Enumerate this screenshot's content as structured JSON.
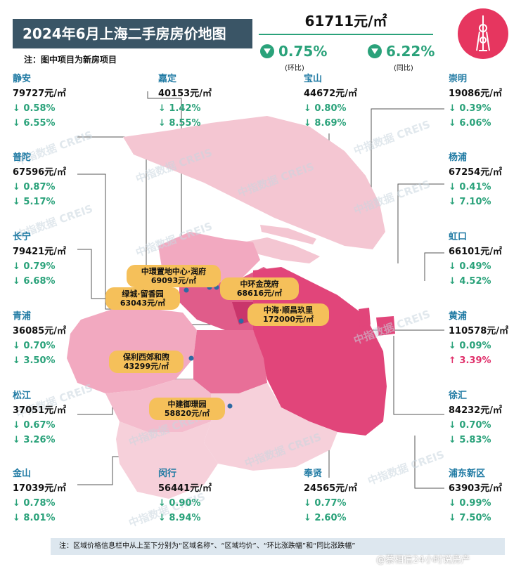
{
  "title": "2024年6月上海二手房房价地图",
  "note": "注：图中项目为新房项目",
  "overall": {
    "avg_price": "61711元/㎡",
    "mom": "0.75%",
    "mom_label": "(环比)",
    "yoy": "6.22%",
    "yoy_label": "(同比)"
  },
  "colors": {
    "accent": "#2aa27a",
    "title_bg": "#3a5566",
    "label": "#f5c05a",
    "up": "#e0306b",
    "name": "#1f7aa3"
  },
  "districts": [
    {
      "name": "静安",
      "price": "79727元/㎡",
      "mom": "↓ 0.58%",
      "yoy": "↓ 6.55%"
    },
    {
      "name": "嘉定",
      "price": "40153元/㎡",
      "mom": "↓ 1.42%",
      "yoy": "↓ 8.55%"
    },
    {
      "name": "宝山",
      "price": "44672元/㎡",
      "mom": "↓ 0.80%",
      "yoy": "↓ 8.69%"
    },
    {
      "name": "崇明",
      "price": "19086元/㎡",
      "mom": "↓ 0.39%",
      "yoy": "↓ 6.06%"
    },
    {
      "name": "普陀",
      "price": "67596元/㎡",
      "mom": "↓ 0.87%",
      "yoy": "↓ 5.17%"
    },
    {
      "name": "杨浦",
      "price": "67254元/㎡",
      "mom": "↓ 0.41%",
      "yoy": "↓ 7.10%"
    },
    {
      "name": "长宁",
      "price": "79421元/㎡",
      "mom": "↓ 0.79%",
      "yoy": "↓ 6.68%"
    },
    {
      "name": "虹口",
      "price": "66101元/㎡",
      "mom": "↓ 0.49%",
      "yoy": "↓ 4.52%"
    },
    {
      "name": "青浦",
      "price": "36085元/㎡",
      "mom": "↓ 0.70%",
      "yoy": "↓ 3.50%"
    },
    {
      "name": "黄浦",
      "price": "110578元/㎡",
      "mom": "↓ 0.09%",
      "yoy": "↑ 3.39%"
    },
    {
      "name": "松江",
      "price": "37051元/㎡",
      "mom": "↓ 0.67%",
      "yoy": "↓ 3.26%"
    },
    {
      "name": "徐汇",
      "price": "84232元/㎡",
      "mom": "↓ 0.70%",
      "yoy": "↓ 5.83%"
    },
    {
      "name": "金山",
      "price": "17039元/㎡",
      "mom": "↓ 0.78%",
      "yoy": "↓ 8.01%"
    },
    {
      "name": "闵行",
      "price": "56441元/㎡",
      "mom": "↓ 0.90%",
      "yoy": "↓ 8.94%"
    },
    {
      "name": "奉贤",
      "price": "24565元/㎡",
      "mom": "↓ 0.77%",
      "yoy": "↓ 2.60%"
    },
    {
      "name": "浦东新区",
      "price": "63903元/㎡",
      "mom": "↓ 0.99%",
      "yoy": "↓ 7.50%"
    }
  ],
  "projects": [
    {
      "name": "中環置地中心·润府",
      "price": "69093元/㎡"
    },
    {
      "name": "绿城·留香园",
      "price": "63043元/㎡"
    },
    {
      "name": "中环金茂府",
      "price": "68616元/㎡"
    },
    {
      "name": "中海·顺昌玖里",
      "price": "172000元/㎡"
    },
    {
      "name": "保利西郊和煦",
      "price": "43299元/㎡"
    },
    {
      "name": "中建御璟园",
      "price": "58820元/㎡"
    }
  ],
  "footer": "注：区域价格信息栏中从上至下分别为“区域名称”、“区域均价”、“环比涨跌幅”和“同比涨跌幅”",
  "watermark": "中指数据 CREIS",
  "credit": "@蔡相信24小时说房产"
}
